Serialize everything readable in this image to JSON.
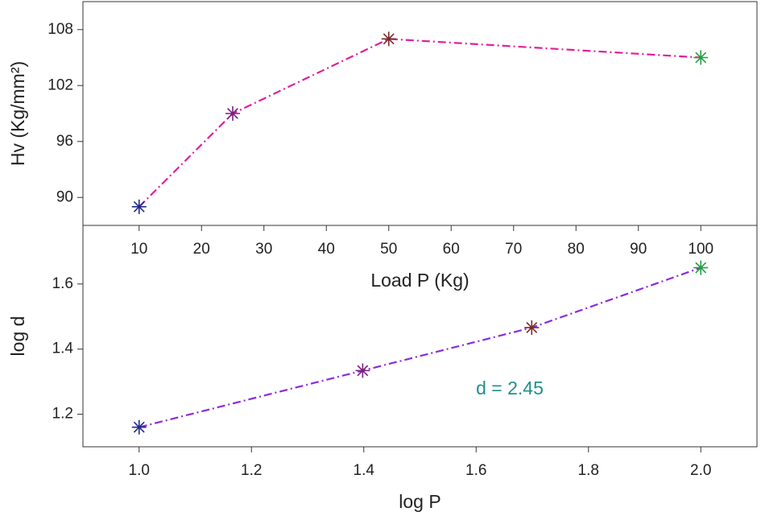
{
  "chart_data": [
    {
      "type": "line",
      "ylabel": "Hv (Kg/mm²)",
      "xlabel": "Load P (Kg)",
      "x": [
        10,
        25,
        50,
        100
      ],
      "values": [
        89,
        99,
        107,
        105
      ],
      "color": "#e0209a",
      "marker_colors": [
        "#1f2a8a",
        "#7a2080",
        "#7a2a2a",
        "#20a040"
      ],
      "xlim": [
        1,
        109
      ],
      "xticks": [
        10,
        20,
        30,
        40,
        50,
        60,
        70,
        80,
        90,
        100
      ],
      "ylim": [
        87,
        111
      ],
      "yticks": [
        90,
        96,
        102,
        108
      ]
    },
    {
      "type": "line",
      "ylabel": "log d",
      "xlabel": "log P",
      "x": [
        1.0,
        1.398,
        1.699,
        2.0
      ],
      "values": [
        1.16,
        1.334,
        1.466,
        1.65
      ],
      "color": "#8a2be2",
      "marker_colors": [
        "#1f2a8a",
        "#7a2080",
        "#7a2a2a",
        "#20a040"
      ],
      "xlim": [
        0.9,
        2.1
      ],
      "xticks": [
        {
          "value": 1,
          "label": "1.0"
        },
        1.2,
        1.4,
        1.6,
        1.8,
        {
          "value": 2,
          "label": "2.0"
        }
      ],
      "ylim": [
        1.1,
        1.78
      ],
      "yticks": [
        1.2,
        1.4,
        1.6
      ],
      "annotation": "d = 2.45",
      "annotation_color": "#20908a"
    }
  ]
}
